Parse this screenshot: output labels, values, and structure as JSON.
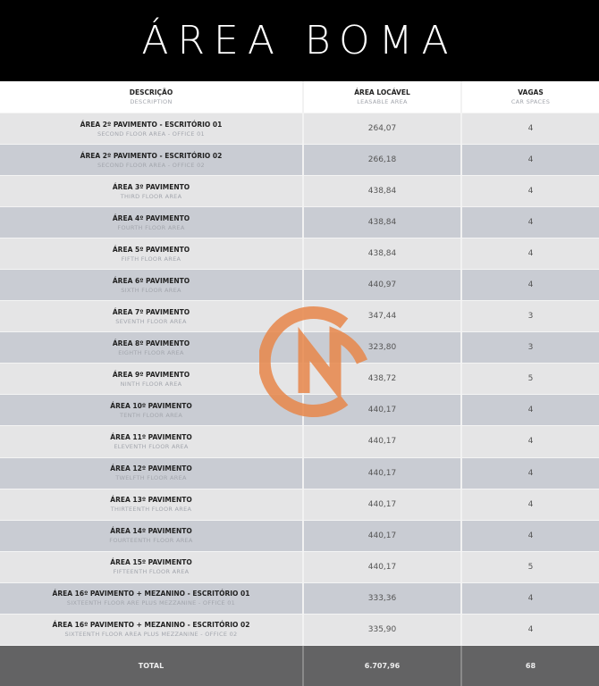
{
  "title": "ÁREA BOMA",
  "columns": [
    {
      "pt": "DESCRIÇÃO",
      "en": "DESCRIPTION"
    },
    {
      "pt": "ÁREA LOCÁVEL",
      "en": "LEASABLE AREA"
    },
    {
      "pt": "VAGAS",
      "en": "CAR SPACES"
    }
  ],
  "rows": [
    {
      "pt": "ÁREA 2º PAVIMENTO - ESCRITÓRIO 01",
      "en": "SECOND FLOOR AREA - OFFICE 01",
      "area": "264,07",
      "vagas": "4"
    },
    {
      "pt": "ÁREA 2º PAVIMENTO - ESCRITÓRIO 02",
      "en": "SECOND FLOOR AREA - OFFICE 02",
      "area": "266,18",
      "vagas": "4"
    },
    {
      "pt": "ÁREA 3º PAVIMENTO",
      "en": "THIRD FLOOR AREA",
      "area": "438,84",
      "vagas": "4"
    },
    {
      "pt": "ÁREA 4º PAVIMENTO",
      "en": "FOURTH FLOOR AREA",
      "area": "438,84",
      "vagas": "4"
    },
    {
      "pt": "ÁREA 5º PAVIMENTO",
      "en": "FIFTH FLOOR AREA",
      "area": "438,84",
      "vagas": "4"
    },
    {
      "pt": "ÁREA 6º PAVIMENTO",
      "en": "SIXTH FLOOR AREA",
      "area": "440,97",
      "vagas": "4"
    },
    {
      "pt": "ÁREA 7º PAVIMENTO",
      "en": "SEVENTH FLOOR AREA",
      "area": "347,44",
      "vagas": "3"
    },
    {
      "pt": "ÁREA 8º PAVIMENTO",
      "en": "EIGHTH FLOOR AREA",
      "area": "323,80",
      "vagas": "3"
    },
    {
      "pt": "ÁREA 9º PAVIMENTO",
      "en": "NINTH FLOOR AREA",
      "area": "438,72",
      "vagas": "5"
    },
    {
      "pt": "ÁREA 10º PAVIMENTO",
      "en": "TENTH FLOOR AREA",
      "area": "440,17",
      "vagas": "4"
    },
    {
      "pt": "ÁREA 11º PAVIMENTO",
      "en": "ELEVENTH FLOOR AREA",
      "area": "440,17",
      "vagas": "4"
    },
    {
      "pt": "ÁREA 12º PAVIMENTO",
      "en": "TWELFTH FLOOR AREA",
      "area": "440,17",
      "vagas": "4"
    },
    {
      "pt": "ÁREA 13º PAVIMENTO",
      "en": "THIRTEENTH FLOOR AREA",
      "area": "440,17",
      "vagas": "4"
    },
    {
      "pt": "ÁREA 14º PAVIMENTO",
      "en": "FOURTEENTH FLOOR AREA",
      "area": "440,17",
      "vagas": "4"
    },
    {
      "pt": "ÁREA 15º PAVIMENTO",
      "en": "FIFTEENTH FLOOR AREA",
      "area": "440,17",
      "vagas": "5"
    },
    {
      "pt": "ÁREA 16º PAVIMENTO + MEZANINO - ESCRITÓRIO 01",
      "en": "SIXTEENTH FLOOR ARE PLUS MEZZANINE - OFFICE 01",
      "area": "333,36",
      "vagas": "4"
    },
    {
      "pt": "ÁREA 16º PAVIMENTO + MEZANINO - ESCRITÓRIO 02",
      "en": "SIXTEENTH FLOOR AREA PLUS MEZZANINE - OFFICE 02",
      "area": "335,90",
      "vagas": "4"
    }
  ],
  "total": {
    "label": "TOTAL",
    "area": "6.707,96",
    "vagas": "68"
  },
  "watermark": {
    "icon": "orange-cn-logo-watermark",
    "color": "#e8874a"
  }
}
